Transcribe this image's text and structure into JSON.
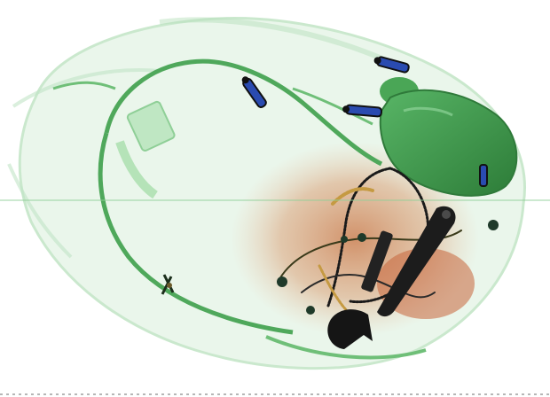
{
  "image": {
    "kind": "x-ray baggage scan",
    "background": "#ffffff",
    "colors": {
      "organic_light": "#7fcf86",
      "organic_mid": "#3f9a4a",
      "organic_dark": "#1f5f27",
      "inorganic_orange": "#c9703f",
      "metal_dark": "#141414",
      "metal_blue": "#2a4bb0"
    }
  },
  "objects": [
    {
      "name": "bag-outline",
      "material": "organic"
    },
    {
      "name": "bottle",
      "material": "organic"
    },
    {
      "name": "zipper-pull",
      "material": "metal"
    },
    {
      "name": "cable",
      "material": "mixed"
    },
    {
      "name": "wrench",
      "material": "metal"
    },
    {
      "name": "dense-clothing",
      "material": "inorganic"
    }
  ]
}
